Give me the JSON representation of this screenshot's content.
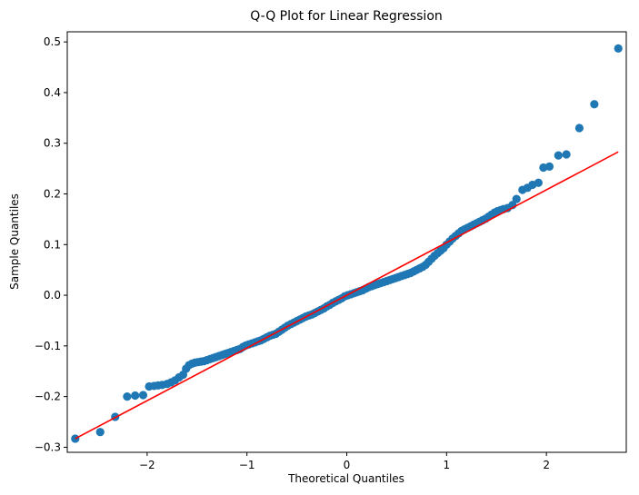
{
  "chart_data": {
    "type": "scatter",
    "title": "Q-Q Plot for Linear Regression",
    "xlabel": "Theoretical Quantiles",
    "ylabel": "Sample Quantiles",
    "xlim": [
      -2.8,
      2.8
    ],
    "ylim": [
      -0.31,
      0.52
    ],
    "x_ticks": [
      -2,
      -1,
      0,
      1,
      2
    ],
    "x_tick_labels": [
      "−2",
      "−1",
      "0",
      "1",
      "2"
    ],
    "y_ticks": [
      -0.3,
      -0.2,
      -0.1,
      0.0,
      0.1,
      0.2,
      0.3,
      0.4,
      0.5
    ],
    "y_tick_labels": [
      "−0.3",
      "−0.2",
      "−0.1",
      "0.0",
      "0.1",
      "0.2",
      "0.3",
      "0.4",
      "0.5"
    ],
    "grid": false,
    "point_color": "#1f77b4",
    "reference_line_color": "#ff0000",
    "reference_line": {
      "x": [
        -2.72,
        2.72
      ],
      "y": [
        -0.283,
        0.283
      ]
    },
    "points": [
      [
        -2.72,
        -0.283
      ],
      [
        -2.47,
        -0.27
      ],
      [
        -2.32,
        -0.24
      ],
      [
        -2.2,
        -0.2
      ],
      [
        -2.12,
        -0.198
      ],
      [
        -2.04,
        -0.197
      ],
      [
        -1.98,
        -0.18
      ],
      [
        -1.93,
        -0.179
      ],
      [
        -1.89,
        -0.178
      ],
      [
        -1.85,
        -0.177
      ],
      [
        -1.8,
        -0.175
      ],
      [
        -1.76,
        -0.172
      ],
      [
        -1.72,
        -0.168
      ],
      [
        -1.68,
        -0.162
      ],
      [
        -1.64,
        -0.157
      ],
      [
        -1.61,
        -0.145
      ],
      [
        -1.58,
        -0.138
      ],
      [
        -1.55,
        -0.135
      ],
      [
        -1.52,
        -0.133
      ],
      [
        -1.49,
        -0.132
      ],
      [
        -1.46,
        -0.131
      ],
      [
        -1.43,
        -0.13
      ],
      [
        -1.4,
        -0.128
      ],
      [
        -1.37,
        -0.126
      ],
      [
        -1.34,
        -0.124
      ],
      [
        -1.31,
        -0.122
      ],
      [
        -1.28,
        -0.12
      ],
      [
        -1.25,
        -0.118
      ],
      [
        -1.22,
        -0.116
      ],
      [
        -1.19,
        -0.114
      ],
      [
        -1.16,
        -0.112
      ],
      [
        -1.13,
        -0.11
      ],
      [
        -1.1,
        -0.108
      ],
      [
        -1.07,
        -0.106
      ],
      [
        -1.04,
        -0.102
      ],
      [
        -1.01,
        -0.099
      ],
      [
        -0.98,
        -0.097
      ],
      [
        -0.95,
        -0.095
      ],
      [
        -0.92,
        -0.093
      ],
      [
        -0.89,
        -0.091
      ],
      [
        -0.86,
        -0.089
      ],
      [
        -0.83,
        -0.086
      ],
      [
        -0.8,
        -0.083
      ],
      [
        -0.77,
        -0.08
      ],
      [
        -0.74,
        -0.078
      ],
      [
        -0.71,
        -0.076
      ],
      [
        -0.68,
        -0.072
      ],
      [
        -0.65,
        -0.068
      ],
      [
        -0.62,
        -0.064
      ],
      [
        -0.59,
        -0.06
      ],
      [
        -0.56,
        -0.057
      ],
      [
        -0.53,
        -0.054
      ],
      [
        -0.5,
        -0.051
      ],
      [
        -0.47,
        -0.048
      ],
      [
        -0.44,
        -0.045
      ],
      [
        -0.41,
        -0.042
      ],
      [
        -0.38,
        -0.04
      ],
      [
        -0.35,
        -0.038
      ],
      [
        -0.32,
        -0.035
      ],
      [
        -0.29,
        -0.032
      ],
      [
        -0.26,
        -0.029
      ],
      [
        -0.23,
        -0.026
      ],
      [
        -0.2,
        -0.022
      ],
      [
        -0.17,
        -0.019
      ],
      [
        -0.14,
        -0.015
      ],
      [
        -0.11,
        -0.012
      ],
      [
        -0.08,
        -0.009
      ],
      [
        -0.05,
        -0.006
      ],
      [
        -0.02,
        -0.002
      ],
      [
        0.01,
        0.0
      ],
      [
        0.04,
        0.002
      ],
      [
        0.07,
        0.004
      ],
      [
        0.1,
        0.006
      ],
      [
        0.13,
        0.008
      ],
      [
        0.16,
        0.01
      ],
      [
        0.19,
        0.013
      ],
      [
        0.22,
        0.016
      ],
      [
        0.25,
        0.018
      ],
      [
        0.28,
        0.02
      ],
      [
        0.31,
        0.022
      ],
      [
        0.34,
        0.024
      ],
      [
        0.37,
        0.026
      ],
      [
        0.4,
        0.028
      ],
      [
        0.43,
        0.03
      ],
      [
        0.46,
        0.032
      ],
      [
        0.49,
        0.034
      ],
      [
        0.52,
        0.036
      ],
      [
        0.55,
        0.038
      ],
      [
        0.58,
        0.04
      ],
      [
        0.61,
        0.042
      ],
      [
        0.64,
        0.044
      ],
      [
        0.67,
        0.047
      ],
      [
        0.7,
        0.05
      ],
      [
        0.73,
        0.053
      ],
      [
        0.76,
        0.056
      ],
      [
        0.79,
        0.06
      ],
      [
        0.82,
        0.066
      ],
      [
        0.85,
        0.072
      ],
      [
        0.88,
        0.078
      ],
      [
        0.91,
        0.083
      ],
      [
        0.94,
        0.088
      ],
      [
        0.97,
        0.093
      ],
      [
        1.0,
        0.1
      ],
      [
        1.03,
        0.106
      ],
      [
        1.06,
        0.112
      ],
      [
        1.09,
        0.117
      ],
      [
        1.12,
        0.122
      ],
      [
        1.15,
        0.127
      ],
      [
        1.18,
        0.13
      ],
      [
        1.21,
        0.133
      ],
      [
        1.24,
        0.136
      ],
      [
        1.27,
        0.139
      ],
      [
        1.3,
        0.142
      ],
      [
        1.33,
        0.145
      ],
      [
        1.36,
        0.148
      ],
      [
        1.39,
        0.151
      ],
      [
        1.42,
        0.155
      ],
      [
        1.45,
        0.159
      ],
      [
        1.48,
        0.163
      ],
      [
        1.51,
        0.166
      ],
      [
        1.54,
        0.168
      ],
      [
        1.57,
        0.17
      ],
      [
        1.61,
        0.172
      ],
      [
        1.66,
        0.178
      ],
      [
        1.7,
        0.19
      ],
      [
        1.76,
        0.208
      ],
      [
        1.81,
        0.212
      ],
      [
        1.86,
        0.218
      ],
      [
        1.92,
        0.222
      ],
      [
        1.97,
        0.252
      ],
      [
        2.03,
        0.254
      ],
      [
        2.12,
        0.276
      ],
      [
        2.2,
        0.278
      ],
      [
        2.33,
        0.33
      ],
      [
        2.48,
        0.377
      ],
      [
        2.72,
        0.487
      ]
    ]
  }
}
